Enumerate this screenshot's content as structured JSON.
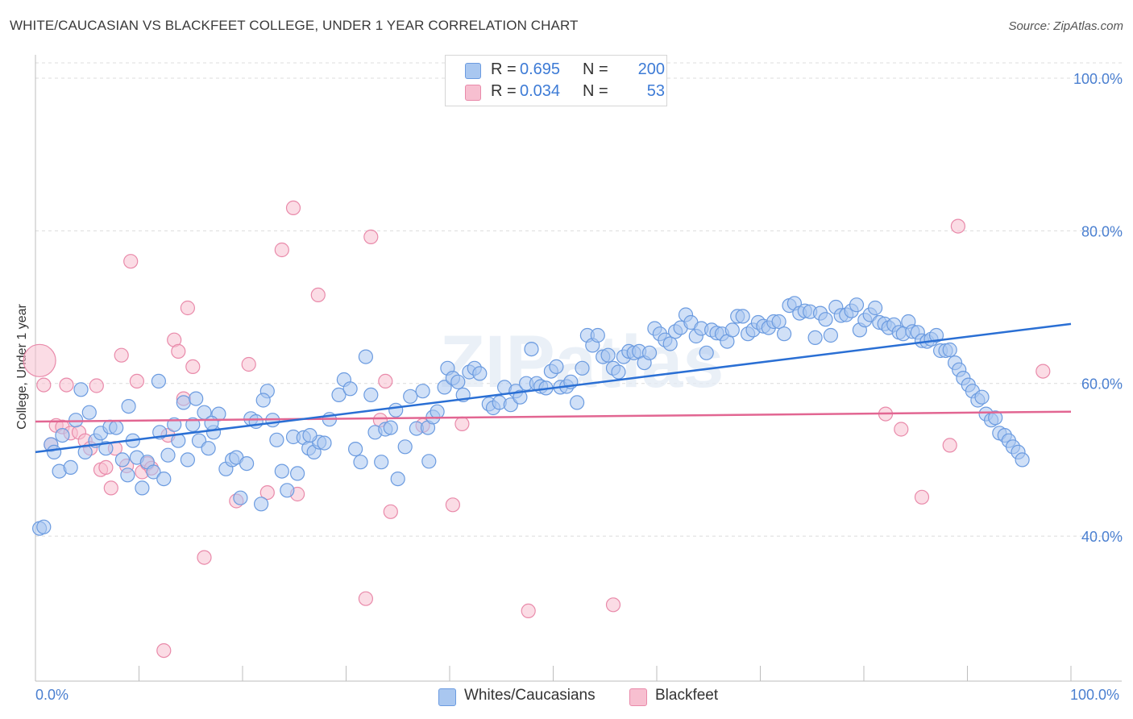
{
  "title": "WHITE/CAUCASIAN VS BLACKFEET COLLEGE, UNDER 1 YEAR CORRELATION CHART",
  "source": "Source: ZipAtlas.com",
  "watermark": "ZIPatlas",
  "legend_top": {
    "rows": [
      {
        "r_label": "R =",
        "r_value": "0.695",
        "n_label": "N =",
        "n_value": "200"
      },
      {
        "r_label": "R =",
        "r_value": "0.034",
        "n_label": "N =",
        "n_value": "53"
      }
    ]
  },
  "legend_bottom": [
    "Whites/Caucasians",
    "Blackfeet"
  ],
  "colors": {
    "blue_fill": "#a9c7f0",
    "blue_stroke": "#6b9be0",
    "blue_line": "#2a6fd4",
    "pink_fill": "#f7bfd0",
    "pink_stroke": "#e98aaa",
    "pink_line": "#e26692",
    "axis_text": "#4a7fd0",
    "grid": "#dcdcdc"
  },
  "chart_data": {
    "type": "scatter",
    "title": "WHITE/CAUCASIAN VS BLACKFEET COLLEGE, UNDER 1 YEAR CORRELATION CHART",
    "xlabel": "",
    "ylabel": "College, Under 1 year",
    "xlim": [
      0,
      100
    ],
    "ylim": [
      21,
      102
    ],
    "x_tick_labels": [
      "0.0%",
      "100.0%"
    ],
    "y_ticks": [
      40,
      60,
      80,
      100
    ],
    "y_tick_labels": [
      "40.0%",
      "60.0%",
      "80.0%",
      "100.0%"
    ],
    "grid": true,
    "legend_position": "top-center",
    "series": [
      {
        "name": "Whites/Caucasians",
        "color": "#a9c7f0",
        "r": 0.695,
        "n": 200,
        "trend": {
          "x": [
            0,
            100
          ],
          "y": [
            51.0,
            67.8
          ]
        },
        "points": [
          [
            0.4,
            41.0
          ],
          [
            0.8,
            41.2
          ],
          [
            1.5,
            52.0
          ],
          [
            1.8,
            51.0
          ],
          [
            2.3,
            48.5
          ],
          [
            2.6,
            53.2
          ],
          [
            3.4,
            49.0
          ],
          [
            3.9,
            55.2
          ],
          [
            4.4,
            59.2
          ],
          [
            4.8,
            51.0
          ],
          [
            5.2,
            56.2
          ],
          [
            5.8,
            52.5
          ],
          [
            6.3,
            53.5
          ],
          [
            6.8,
            51.5
          ],
          [
            7.2,
            54.3
          ],
          [
            7.8,
            54.2
          ],
          [
            8.4,
            50.0
          ],
          [
            8.9,
            48.0
          ],
          [
            9.4,
            52.5
          ],
          [
            9.8,
            50.3
          ],
          [
            10.3,
            46.3
          ],
          [
            10.8,
            49.7
          ],
          [
            11.4,
            48.4
          ],
          [
            11.9,
            60.3
          ],
          [
            12.4,
            47.5
          ],
          [
            12.8,
            50.6
          ],
          [
            13.4,
            54.6
          ],
          [
            13.8,
            52.5
          ],
          [
            14.3,
            57.5
          ],
          [
            14.7,
            50.0
          ],
          [
            15.2,
            54.6
          ],
          [
            15.8,
            52.5
          ],
          [
            16.3,
            56.2
          ],
          [
            16.7,
            51.5
          ],
          [
            17.2,
            53.6
          ],
          [
            17.7,
            56.0
          ],
          [
            18.4,
            48.8
          ],
          [
            19.0,
            50.0
          ],
          [
            19.4,
            50.3
          ],
          [
            19.8,
            45.0
          ],
          [
            20.4,
            49.5
          ],
          [
            20.8,
            55.4
          ],
          [
            21.3,
            55.0
          ],
          [
            21.8,
            44.2
          ],
          [
            22.4,
            59.0
          ],
          [
            22.9,
            55.2
          ],
          [
            23.3,
            52.6
          ],
          [
            23.8,
            48.5
          ],
          [
            24.3,
            46.0
          ],
          [
            24.9,
            53.0
          ],
          [
            25.3,
            48.2
          ],
          [
            25.9,
            52.9
          ],
          [
            26.4,
            51.5
          ],
          [
            26.9,
            51.0
          ],
          [
            27.4,
            52.3
          ],
          [
            27.9,
            52.2
          ],
          [
            28.4,
            55.3
          ],
          [
            29.3,
            58.5
          ],
          [
            29.8,
            60.5
          ],
          [
            30.4,
            59.3
          ],
          [
            30.9,
            51.4
          ],
          [
            31.4,
            49.7
          ],
          [
            31.9,
            63.5
          ],
          [
            32.4,
            58.5
          ],
          [
            32.8,
            53.6
          ],
          [
            33.4,
            49.7
          ],
          [
            33.8,
            54.0
          ],
          [
            34.3,
            54.2
          ],
          [
            34.8,
            56.5
          ],
          [
            35.7,
            51.7
          ],
          [
            36.2,
            58.3
          ],
          [
            36.8,
            54.1
          ],
          [
            37.4,
            59.0
          ],
          [
            37.9,
            54.2
          ],
          [
            38.4,
            55.6
          ],
          [
            38.8,
            56.3
          ],
          [
            39.5,
            59.5
          ],
          [
            39.8,
            62.0
          ],
          [
            40.3,
            60.7
          ],
          [
            40.8,
            60.2
          ],
          [
            41.3,
            58.5
          ],
          [
            41.9,
            61.5
          ],
          [
            42.4,
            62.0
          ],
          [
            42.9,
            61.3
          ],
          [
            43.8,
            57.3
          ],
          [
            44.2,
            56.8
          ],
          [
            44.8,
            57.5
          ],
          [
            45.3,
            59.5
          ],
          [
            45.9,
            57.2
          ],
          [
            46.4,
            59.0
          ],
          [
            46.8,
            58.2
          ],
          [
            47.4,
            60.0
          ],
          [
            47.9,
            64.5
          ],
          [
            48.4,
            60.0
          ],
          [
            48.8,
            59.6
          ],
          [
            49.3,
            59.4
          ],
          [
            49.8,
            61.6
          ],
          [
            50.3,
            62.2
          ],
          [
            50.7,
            59.5
          ],
          [
            51.3,
            59.6
          ],
          [
            51.7,
            60.2
          ],
          [
            52.3,
            57.5
          ],
          [
            52.8,
            62.0
          ],
          [
            53.3,
            66.3
          ],
          [
            53.8,
            65.0
          ],
          [
            54.3,
            66.3
          ],
          [
            54.8,
            63.5
          ],
          [
            55.3,
            63.7
          ],
          [
            55.8,
            62.0
          ],
          [
            56.3,
            61.5
          ],
          [
            56.8,
            63.5
          ],
          [
            57.3,
            64.2
          ],
          [
            57.8,
            64.0
          ],
          [
            58.3,
            64.2
          ],
          [
            58.8,
            62.7
          ],
          [
            59.3,
            64.0
          ],
          [
            59.8,
            67.2
          ],
          [
            60.3,
            66.5
          ],
          [
            60.8,
            65.7
          ],
          [
            61.3,
            65.2
          ],
          [
            61.8,
            66.8
          ],
          [
            62.3,
            67.3
          ],
          [
            62.8,
            69.0
          ],
          [
            63.3,
            68.0
          ],
          [
            63.8,
            66.2
          ],
          [
            64.3,
            67.2
          ],
          [
            64.8,
            64.0
          ],
          [
            65.3,
            67.0
          ],
          [
            65.8,
            66.6
          ],
          [
            66.3,
            66.5
          ],
          [
            66.8,
            65.5
          ],
          [
            67.3,
            67.0
          ],
          [
            67.8,
            68.8
          ],
          [
            68.3,
            68.8
          ],
          [
            68.8,
            66.5
          ],
          [
            69.3,
            67.0
          ],
          [
            69.8,
            68.0
          ],
          [
            70.3,
            67.5
          ],
          [
            70.8,
            67.3
          ],
          [
            71.3,
            68.1
          ],
          [
            71.8,
            68.1
          ],
          [
            72.3,
            66.5
          ],
          [
            72.8,
            70.2
          ],
          [
            73.3,
            70.5
          ],
          [
            73.8,
            69.2
          ],
          [
            74.3,
            69.5
          ],
          [
            74.8,
            69.4
          ],
          [
            75.3,
            66.0
          ],
          [
            75.8,
            69.2
          ],
          [
            76.3,
            68.4
          ],
          [
            76.8,
            66.3
          ],
          [
            77.3,
            70.0
          ],
          [
            77.8,
            68.9
          ],
          [
            78.3,
            69.0
          ],
          [
            78.8,
            69.5
          ],
          [
            79.3,
            70.3
          ],
          [
            79.6,
            67.0
          ],
          [
            80.1,
            68.3
          ],
          [
            80.6,
            69.0
          ],
          [
            81.1,
            69.9
          ],
          [
            81.5,
            68.0
          ],
          [
            82.0,
            67.8
          ],
          [
            82.4,
            67.3
          ],
          [
            82.9,
            67.7
          ],
          [
            83.4,
            66.7
          ],
          [
            83.8,
            66.5
          ],
          [
            84.3,
            68.1
          ],
          [
            84.7,
            66.8
          ],
          [
            85.2,
            66.7
          ],
          [
            85.6,
            65.6
          ],
          [
            86.1,
            65.5
          ],
          [
            86.5,
            65.8
          ],
          [
            87.0,
            66.3
          ],
          [
            87.4,
            64.3
          ],
          [
            87.9,
            64.3
          ],
          [
            88.3,
            64.4
          ],
          [
            88.8,
            62.7
          ],
          [
            89.2,
            61.8
          ],
          [
            89.6,
            60.7
          ],
          [
            90.1,
            59.8
          ],
          [
            90.5,
            59.0
          ],
          [
            91.0,
            57.8
          ],
          [
            91.4,
            58.2
          ],
          [
            91.8,
            56.0
          ],
          [
            92.3,
            55.2
          ],
          [
            92.7,
            55.5
          ],
          [
            93.1,
            53.5
          ],
          [
            93.6,
            53.2
          ],
          [
            94.0,
            52.5
          ],
          [
            94.4,
            51.7
          ],
          [
            94.9,
            51.0
          ],
          [
            95.3,
            50.0
          ],
          [
            35.0,
            47.5
          ],
          [
            38.0,
            49.8
          ],
          [
            26.5,
            53.2
          ],
          [
            17.0,
            54.8
          ],
          [
            12.0,
            53.6
          ],
          [
            9.0,
            57.0
          ],
          [
            15.5,
            58.0
          ],
          [
            22.0,
            57.8
          ]
        ]
      },
      {
        "name": "Blackfeet",
        "color": "#f7bfd0",
        "r": 0.034,
        "n": 53,
        "trend": {
          "x": [
            0,
            100
          ],
          "y": [
            55.0,
            56.3
          ]
        },
        "points": [
          [
            0.4,
            63.0
          ],
          [
            0.8,
            59.8
          ],
          [
            1.5,
            52.0
          ],
          [
            2.0,
            54.5
          ],
          [
            2.6,
            54.3
          ],
          [
            3.0,
            59.8
          ],
          [
            3.4,
            53.5
          ],
          [
            4.2,
            53.6
          ],
          [
            4.8,
            52.5
          ],
          [
            5.3,
            51.5
          ],
          [
            5.9,
            59.7
          ],
          [
            6.3,
            48.7
          ],
          [
            6.8,
            49.0
          ],
          [
            7.3,
            46.3
          ],
          [
            7.7,
            51.5
          ],
          [
            8.3,
            63.7
          ],
          [
            8.8,
            49.2
          ],
          [
            9.2,
            76.0
          ],
          [
            9.8,
            60.3
          ],
          [
            10.3,
            48.4
          ],
          [
            10.8,
            49.5
          ],
          [
            11.2,
            48.9
          ],
          [
            12.4,
            25.0
          ],
          [
            12.8,
            53.2
          ],
          [
            13.4,
            65.7
          ],
          [
            13.8,
            64.2
          ],
          [
            14.3,
            58.0
          ],
          [
            14.7,
            69.9
          ],
          [
            15.2,
            62.2
          ],
          [
            16.3,
            37.2
          ],
          [
            19.4,
            44.6
          ],
          [
            20.6,
            62.5
          ],
          [
            22.4,
            45.7
          ],
          [
            23.8,
            77.5
          ],
          [
            24.9,
            83.0
          ],
          [
            25.3,
            45.5
          ],
          [
            27.3,
            71.6
          ],
          [
            31.9,
            31.8
          ],
          [
            32.4,
            79.2
          ],
          [
            33.3,
            55.2
          ],
          [
            33.8,
            60.3
          ],
          [
            34.3,
            43.2
          ],
          [
            37.4,
            54.5
          ],
          [
            40.3,
            44.1
          ],
          [
            41.2,
            54.7
          ],
          [
            47.6,
            30.2
          ],
          [
            55.8,
            31.0
          ],
          [
            82.1,
            56.0
          ],
          [
            83.6,
            54.0
          ],
          [
            85.6,
            45.1
          ],
          [
            88.3,
            51.9
          ],
          [
            89.1,
            80.6
          ],
          [
            97.3,
            61.6
          ]
        ]
      }
    ]
  }
}
